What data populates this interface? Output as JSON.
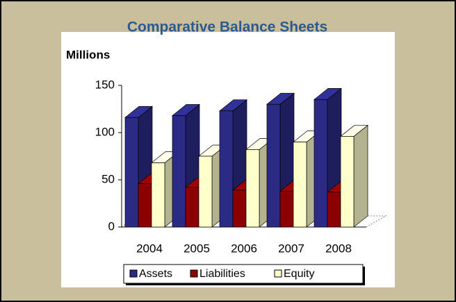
{
  "chart_data": {
    "type": "bar3d",
    "title": "Comparative Balance Sheets",
    "y_label": "Millions",
    "categories": [
      "2004",
      "2005",
      "2006",
      "2007",
      "2008"
    ],
    "series": [
      {
        "name": "Assets",
        "color": "#2b2b86",
        "values": [
          116,
          118,
          123,
          130,
          135
        ]
      },
      {
        "name": "Liabilities",
        "color": "#8b0000",
        "values": [
          46,
          42,
          39,
          38,
          37
        ]
      },
      {
        "name": "Equity",
        "color": "#ffffcc",
        "values": [
          68,
          75,
          82,
          90,
          96
        ]
      }
    ],
    "ylim": [
      0,
      150
    ],
    "yticks": [
      0,
      50,
      100,
      150
    ],
    "legend": "bottom"
  }
}
